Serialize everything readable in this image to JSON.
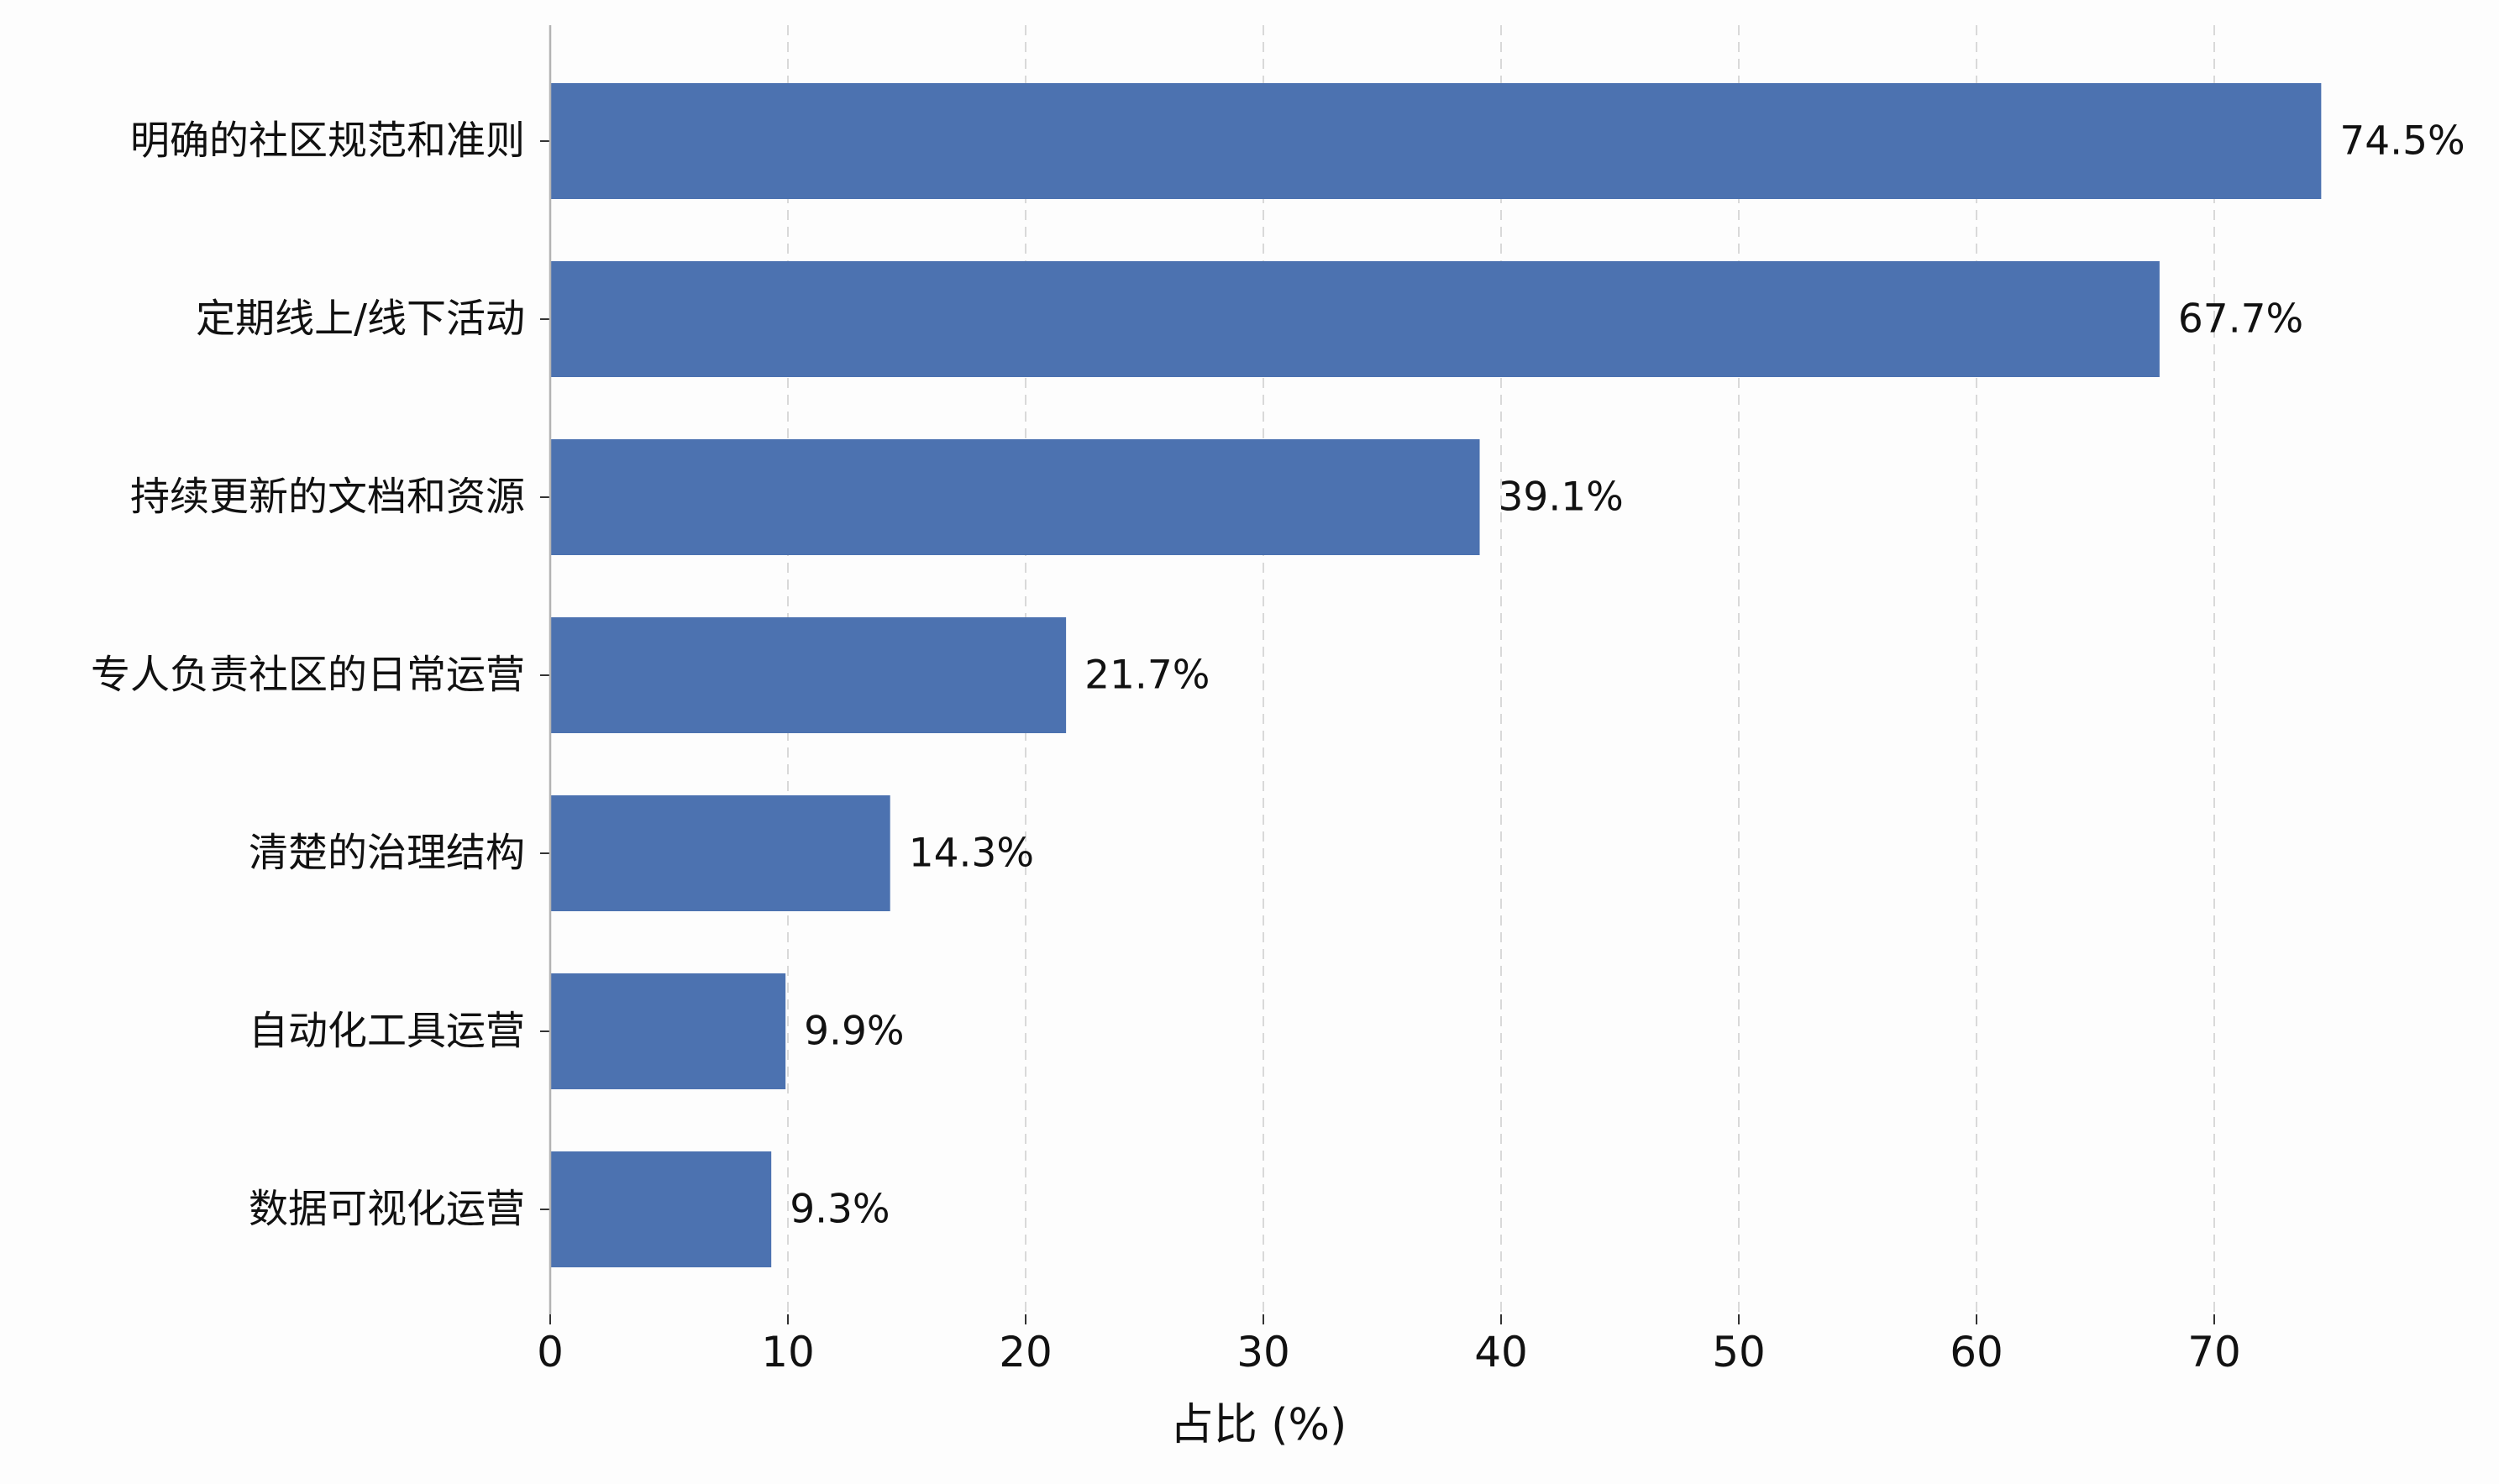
{
  "chart_data": {
    "type": "bar",
    "orientation": "horizontal",
    "categories": [
      "明确的社区规范和准则",
      "定期线上/线下活动",
      "持续更新的文档和资源",
      "专人负责社区的日常运营",
      "清楚的治理结构",
      "自动化工具运营",
      "数据可视化运营"
    ],
    "values": [
      74.5,
      67.7,
      39.1,
      21.7,
      14.3,
      9.9,
      9.3
    ],
    "value_labels": [
      "74.5%",
      "67.7%",
      "39.1%",
      "21.7%",
      "14.3%",
      "9.9%",
      "9.3%"
    ],
    "title": "",
    "xlabel": "占比 (%)",
    "ylabel": "",
    "xlim": [
      0,
      76.5
    ],
    "xticks": [
      0,
      10,
      20,
      30,
      40,
      50,
      60,
      70
    ],
    "grid": "x-dashed",
    "legend": "none"
  },
  "colors": {
    "bar": "#4c72b0",
    "grid": "#d9d9d9",
    "axis": "#b3b3b3",
    "text": "#111111",
    "background": "#fdfdfd"
  }
}
